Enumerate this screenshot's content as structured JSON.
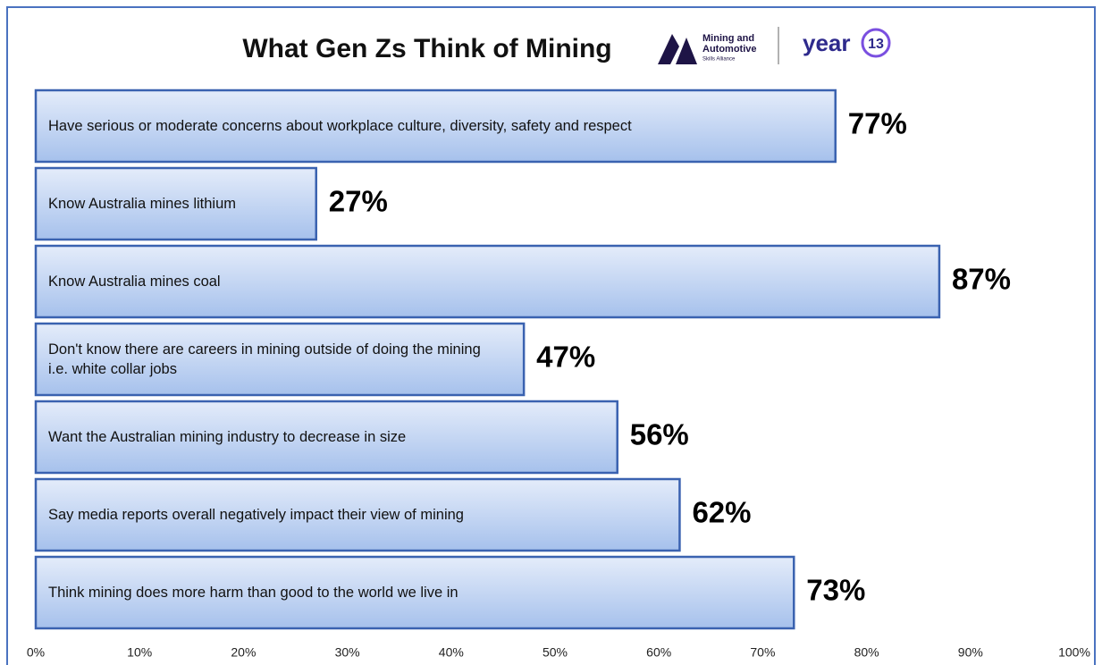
{
  "chart_data": {
    "type": "bar",
    "orientation": "horizontal",
    "title": "What Gen Zs Think of Mining",
    "logo_texts": [
      "Mining and",
      "Automotive",
      "Skills Alliance",
      "year",
      "13"
    ],
    "categories": [
      "Have serious or moderate concerns about workplace culture, diversity, safety and respect",
      "Know Australia mines lithium",
      "Know Australia mines coal",
      "Don't know there are careers in mining outside of doing the mining i.e. white collar jobs",
      "Want the Australian mining industry to decrease in size",
      "Say media reports overall negatively impact their view of mining",
      "Think mining does more harm than good to the world we live in"
    ],
    "values": [
      77,
      27,
      87,
      47,
      56,
      62,
      73
    ],
    "value_labels": [
      "77%",
      "27%",
      "87%",
      "47%",
      "56%",
      "62%",
      "73%"
    ],
    "color": "#b4cbf0",
    "xlim": [
      0,
      100
    ],
    "xticks": [
      {
        "value": 0,
        "label": "0%"
      },
      {
        "value": 10,
        "label": "10%"
      },
      {
        "value": 20,
        "label": "20%"
      },
      {
        "value": 30,
        "label": "30%"
      },
      {
        "value": 40,
        "label": "40%"
      },
      {
        "value": 50,
        "label": "50%"
      },
      {
        "value": 60,
        "label": "60%"
      },
      {
        "value": 70,
        "label": "70%"
      },
      {
        "value": 80,
        "label": "80%"
      },
      {
        "value": 90,
        "label": "90%"
      },
      {
        "value": 100,
        "label": "100%"
      }
    ],
    "grid": false
  }
}
